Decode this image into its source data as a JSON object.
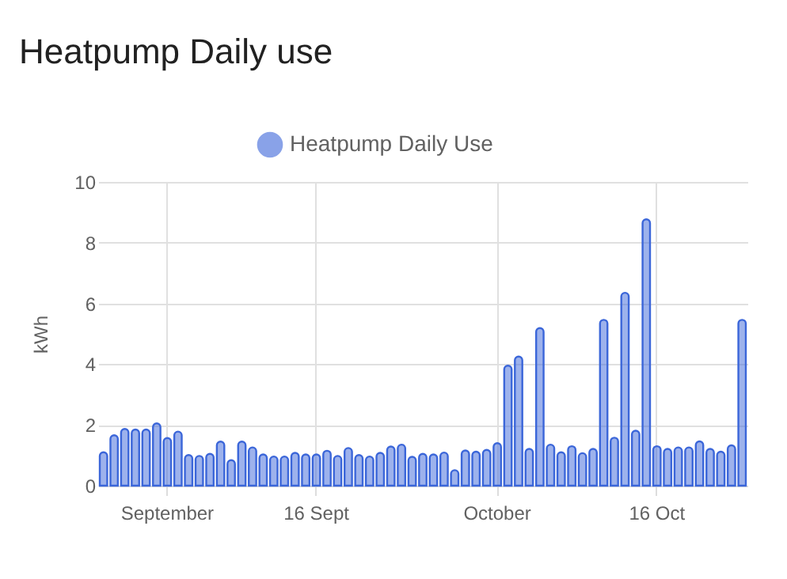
{
  "chart_data": {
    "type": "bar",
    "title": "Heatpump Daily use",
    "ylabel": "kWh",
    "categories": [
      null,
      null,
      null,
      null,
      null,
      null,
      "September",
      null,
      null,
      null,
      null,
      null,
      null,
      null,
      null,
      null,
      null,
      null,
      null,
      null,
      "16 Sept",
      null,
      null,
      null,
      null,
      null,
      null,
      null,
      null,
      null,
      null,
      null,
      null,
      null,
      null,
      null,
      null,
      "October",
      null,
      null,
      null,
      null,
      null,
      null,
      null,
      null,
      null,
      null,
      null,
      null,
      null,
      null,
      "16 Oct",
      null,
      null,
      null,
      null,
      null,
      null,
      null,
      null
    ],
    "series": [
      {
        "name": "Heatpump Daily Use",
        "color": "#3b66d9",
        "values": [
          1.1,
          1.66,
          1.87,
          1.85,
          1.85,
          2.05,
          1.57,
          1.78,
          1.01,
          0.98,
          1.05,
          1.45,
          0.84,
          1.45,
          1.26,
          1.03,
          0.96,
          0.96,
          1.08,
          1.03,
          1.03,
          1.15,
          0.98,
          1.24,
          1.01,
          0.96,
          1.08,
          1.29,
          1.35,
          0.95,
          1.05,
          1.03,
          1.09,
          0.51,
          1.16,
          1.12,
          1.18,
          1.4,
          3.95,
          4.25,
          1.21,
          5.19,
          1.35,
          1.1,
          1.3,
          1.07,
          1.21,
          5.46,
          1.58,
          6.35,
          1.81,
          8.77,
          1.3,
          1.21,
          1.26,
          1.26,
          1.46,
          1.21,
          1.12,
          1.33,
          5.46
        ]
      }
    ],
    "ylim": [
      0,
      10
    ],
    "yticks": [
      0,
      2,
      4,
      6,
      8,
      10
    ],
    "grid": true,
    "legend": "top"
  }
}
